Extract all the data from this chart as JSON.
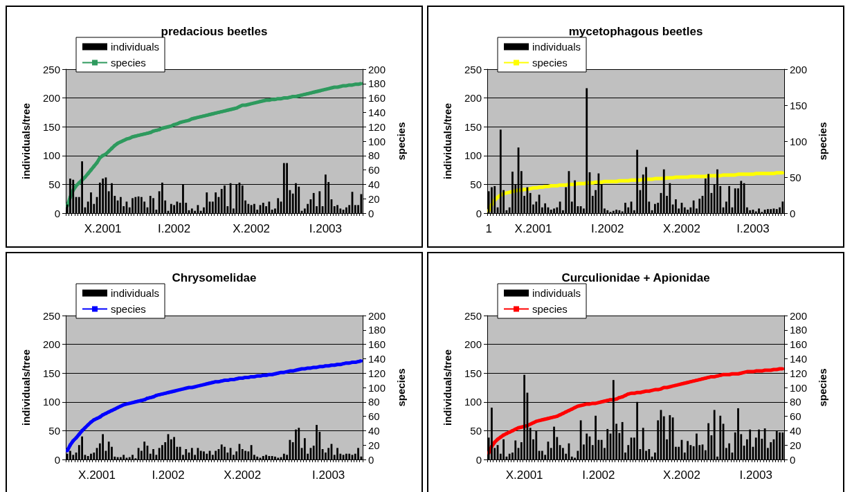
{
  "chart_data": [
    {
      "type": "bar",
      "title": "predacious beetles",
      "ylabel": "individuals/tree",
      "y2label": "species",
      "grid": "y",
      "legend": "top left",
      "marker": "square",
      "categories": [
        null,
        null,
        null,
        null,
        null,
        null,
        null,
        null,
        null,
        null,
        null,
        null,
        "X.2001",
        null,
        null,
        null,
        null,
        null,
        null,
        null,
        null,
        null,
        null,
        null,
        null,
        null,
        null,
        null,
        null,
        null,
        null,
        null,
        null,
        null,
        null,
        null,
        "I.2002",
        null,
        null,
        null,
        null,
        null,
        null,
        null,
        null,
        null,
        null,
        null,
        null,
        null,
        null,
        null,
        null,
        null,
        null,
        null,
        null,
        null,
        null,
        null,
        null,
        null,
        "X.2002",
        null,
        null,
        null,
        null,
        null,
        null,
        null,
        null,
        null,
        null,
        null,
        null,
        null,
        null,
        null,
        null,
        null,
        null,
        null,
        null,
        null,
        null,
        null,
        null,
        "I.2003",
        null,
        null,
        null,
        null,
        null,
        null,
        null,
        null,
        null,
        null,
        null,
        null
      ],
      "ylim": [
        0,
        250
      ],
      "yticks": [
        0,
        50,
        100,
        150,
        200,
        250
      ],
      "y2lim": [
        0,
        200
      ],
      "y2ticks": [
        0,
        20,
        40,
        60,
        80,
        100,
        120,
        140,
        160,
        180,
        200
      ],
      "series": [
        {
          "name": "individuals",
          "color": "#000000",
          "values": [
            15,
            60,
            58,
            28,
            28,
            90,
            10,
            20,
            36,
            16,
            28,
            53,
            60,
            62,
            38,
            52,
            30,
            22,
            28,
            12,
            20,
            10,
            26,
            28,
            29,
            28,
            20,
            10,
            30,
            26,
            6,
            38,
            53,
            22,
            4,
            16,
            14,
            20,
            18,
            50,
            18,
            5,
            8,
            4,
            14,
            4,
            10,
            36,
            20,
            20,
            36,
            28,
            42,
            48,
            12,
            52,
            8,
            50,
            53,
            48,
            22,
            16,
            14,
            16,
            6,
            14,
            18,
            12,
            20,
            6,
            8,
            26,
            20,
            87,
            87,
            40,
            34,
            52,
            46,
            4,
            8,
            16,
            24,
            35,
            12,
            38,
            12,
            67,
            54,
            24,
            12,
            14,
            8,
            6,
            10,
            14,
            37,
            14,
            14,
            33
          ]
        },
        {
          "name": "species",
          "type": "line",
          "axis": "y2",
          "color": "#2e9a5e",
          "values": [
            10,
            22,
            32,
            38,
            42,
            46,
            50,
            55,
            60,
            65,
            70,
            77,
            80,
            82,
            86,
            90,
            94,
            97,
            99,
            101,
            103,
            104,
            106,
            107,
            108,
            109,
            110,
            111,
            112,
            114,
            115,
            116,
            118,
            119,
            120,
            121,
            123,
            124,
            126,
            127,
            128,
            129,
            131,
            132,
            133,
            134,
            135,
            136,
            137,
            138,
            139,
            140,
            141,
            142,
            143,
            144,
            145,
            146,
            148,
            150,
            150,
            151,
            152,
            153,
            154,
            155,
            156,
            157,
            157,
            158,
            158,
            159,
            159,
            160,
            160,
            161,
            162,
            162,
            163,
            164,
            165,
            166,
            167,
            168,
            169,
            170,
            171,
            172,
            173,
            174,
            175,
            175,
            176,
            177,
            177,
            178,
            178,
            179,
            179,
            180
          ]
        }
      ]
    },
    {
      "type": "bar",
      "title": "mycetophagous beetles",
      "ylabel": "individuals/tree",
      "y2label": "species",
      "grid": "y",
      "legend": "top left",
      "marker": "square",
      "categories": [
        "1",
        null,
        null,
        null,
        null,
        null,
        null,
        null,
        null,
        null,
        null,
        null,
        null,
        null,
        null,
        "X.2001",
        null,
        null,
        null,
        null,
        null,
        null,
        null,
        null,
        null,
        null,
        null,
        null,
        null,
        null,
        null,
        null,
        null,
        null,
        null,
        null,
        null,
        null,
        null,
        null,
        "I.2002",
        null,
        null,
        null,
        null,
        null,
        null,
        null,
        null,
        null,
        null,
        null,
        null,
        null,
        null,
        null,
        null,
        null,
        null,
        null,
        null,
        null,
        null,
        null,
        null,
        "X.2002",
        null,
        null,
        null,
        null,
        null,
        null,
        null,
        null,
        null,
        null,
        null,
        null,
        null,
        null,
        null,
        null,
        null,
        null,
        null,
        null,
        null,
        null,
        null,
        "I.2003",
        null,
        null,
        null,
        null,
        null,
        null,
        null,
        null,
        null,
        null
      ],
      "ylim": [
        0,
        250
      ],
      "yticks": [
        0,
        50,
        100,
        150,
        200,
        250
      ],
      "y2lim": [
        0,
        200
      ],
      "y2ticks": [
        0,
        50,
        100,
        150,
        200
      ],
      "series": [
        {
          "name": "individuals",
          "color": "#000000",
          "values": [
            38,
            45,
            47,
            10,
            145,
            40,
            5,
            10,
            72,
            50,
            114,
            73,
            30,
            45,
            35,
            15,
            20,
            32,
            10,
            17,
            10,
            6,
            8,
            10,
            20,
            5,
            45,
            73,
            20,
            57,
            12,
            12,
            8,
            217,
            71,
            30,
            40,
            69,
            50,
            8,
            5,
            2,
            4,
            6,
            5,
            3,
            18,
            10,
            20,
            5,
            110,
            40,
            67,
            80,
            20,
            5,
            16,
            18,
            35,
            76,
            30,
            52,
            15,
            24,
            8,
            18,
            10,
            6,
            10,
            22,
            8,
            25,
            30,
            60,
            68,
            35,
            50,
            76,
            47,
            10,
            20,
            47,
            10,
            43,
            43,
            56,
            52,
            10,
            5,
            6,
            3,
            8,
            2,
            6,
            7,
            7,
            8,
            7,
            10,
            20
          ]
        },
        {
          "name": "species",
          "type": "line",
          "axis": "y2",
          "color": "#ffff00",
          "values": [
            3,
            12,
            18,
            22,
            25,
            27,
            28,
            29,
            30,
            31,
            32,
            32,
            33,
            33,
            34,
            35,
            35,
            36,
            36,
            37,
            37,
            38,
            38,
            38,
            39,
            39,
            39,
            40,
            40,
            40,
            41,
            41,
            41,
            42,
            42,
            42,
            43,
            43,
            43,
            44,
            44,
            44,
            44,
            44,
            45,
            45,
            45,
            45,
            46,
            46,
            46,
            46,
            47,
            47,
            47,
            47,
            48,
            48,
            48,
            48,
            49,
            49,
            49,
            50,
            50,
            50,
            50,
            50,
            51,
            51,
            51,
            51,
            51,
            51,
            52,
            52,
            52,
            52,
            52,
            53,
            53,
            53,
            53,
            53,
            54,
            54,
            54,
            54,
            54,
            54,
            55,
            55,
            55,
            55,
            55,
            55,
            55,
            56,
            56,
            56
          ]
        }
      ]
    },
    {
      "type": "bar",
      "title": "Chrysomelidae",
      "ylabel": "individuals/tree",
      "y2label": "species",
      "grid": "y",
      "legend": "top left",
      "marker": "square",
      "categories": [
        null,
        null,
        null,
        null,
        null,
        null,
        null,
        null,
        null,
        null,
        "X.2001",
        null,
        null,
        null,
        null,
        null,
        null,
        null,
        null,
        null,
        null,
        null,
        null,
        null,
        null,
        null,
        null,
        null,
        null,
        null,
        null,
        null,
        null,
        null,
        "I.2002",
        null,
        null,
        null,
        null,
        null,
        null,
        null,
        null,
        null,
        null,
        null,
        null,
        null,
        null,
        null,
        null,
        null,
        null,
        null,
        null,
        null,
        null,
        null,
        null,
        "X.2002",
        null,
        null,
        null,
        null,
        null,
        null,
        null,
        null,
        null,
        null,
        null,
        null,
        null,
        null,
        null,
        null,
        null,
        null,
        null,
        null,
        null,
        null,
        null,
        null,
        null,
        null,
        null,
        null,
        "I.2003",
        null,
        null,
        null,
        null,
        null,
        null,
        null,
        null,
        null,
        null,
        null
      ],
      "ylim": [
        0,
        250
      ],
      "yticks": [
        0,
        50,
        100,
        150,
        200,
        250
      ],
      "y2lim": [
        0,
        200
      ],
      "y2ticks": [
        0,
        20,
        40,
        60,
        80,
        100,
        120,
        140,
        160,
        180,
        200
      ],
      "series": [
        {
          "name": "individuals",
          "color": "#000000",
          "values": [
            10,
            15,
            8,
            12,
            25,
            40,
            8,
            6,
            10,
            12,
            20,
            28,
            44,
            15,
            31,
            22,
            5,
            4,
            4,
            8,
            3,
            4,
            8,
            2,
            20,
            15,
            31,
            24,
            10,
            18,
            8,
            20,
            25,
            30,
            44,
            35,
            39,
            22,
            22,
            8,
            18,
            12,
            20,
            8,
            20,
            15,
            14,
            10,
            15,
            8,
            15,
            18,
            26,
            22,
            12,
            20,
            8,
            14,
            27,
            18,
            15,
            14,
            25,
            8,
            5,
            3,
            6,
            8,
            6,
            6,
            5,
            3,
            4,
            10,
            8,
            34,
            30,
            52,
            55,
            20,
            37,
            10,
            20,
            24,
            60,
            48,
            18,
            12,
            20,
            27,
            8,
            20,
            10,
            8,
            10,
            10,
            8,
            10,
            20,
            5
          ]
        },
        {
          "name": "species",
          "type": "line",
          "axis": "y2",
          "color": "#0000ff",
          "values": [
            12,
            20,
            26,
            30,
            35,
            40,
            44,
            48,
            52,
            55,
            57,
            59,
            62,
            64,
            66,
            68,
            70,
            72,
            74,
            76,
            77,
            78,
            79,
            80,
            81,
            82,
            83,
            85,
            86,
            87,
            89,
            90,
            91,
            92,
            93,
            94,
            95,
            96,
            97,
            98,
            99,
            100,
            100,
            101,
            102,
            103,
            104,
            105,
            106,
            107,
            108,
            108,
            109,
            110,
            110,
            111,
            111,
            112,
            113,
            113,
            114,
            114,
            115,
            115,
            116,
            116,
            117,
            117,
            118,
            118,
            119,
            120,
            121,
            121,
            122,
            123,
            123,
            124,
            125,
            126,
            126,
            127,
            127,
            128,
            128,
            129,
            129,
            130,
            130,
            131,
            131,
            132,
            132,
            133,
            134,
            134,
            135,
            135,
            136,
            137
          ]
        }
      ]
    },
    {
      "type": "bar",
      "title": "Curculionidae + Apionidae",
      "ylabel": "individuals/tree",
      "y2label": "species",
      "grid": "y",
      "legend": "top left",
      "marker": "square",
      "categories": [
        null,
        null,
        null,
        null,
        null,
        null,
        null,
        null,
        null,
        null,
        null,
        null,
        "X.2001",
        null,
        null,
        null,
        null,
        null,
        null,
        null,
        null,
        null,
        null,
        null,
        null,
        null,
        null,
        null,
        null,
        null,
        null,
        null,
        null,
        null,
        null,
        null,
        null,
        "I.2002",
        null,
        null,
        null,
        null,
        null,
        null,
        null,
        null,
        null,
        null,
        null,
        null,
        null,
        null,
        null,
        null,
        null,
        null,
        null,
        null,
        null,
        null,
        null,
        null,
        null,
        null,
        null,
        "X.2002",
        null,
        null,
        null,
        null,
        null,
        null,
        null,
        null,
        null,
        null,
        null,
        null,
        null,
        null,
        null,
        null,
        null,
        null,
        null,
        null,
        null,
        null,
        null,
        null,
        "I.2003",
        null,
        null,
        null,
        null,
        null,
        null,
        null,
        null,
        null
      ],
      "ylim": [
        0,
        250
      ],
      "yticks": [
        0,
        50,
        100,
        150,
        200,
        250
      ],
      "y2lim": [
        0,
        200
      ],
      "y2ticks": [
        0,
        20,
        40,
        60,
        80,
        100,
        120,
        140,
        160,
        180,
        200
      ],
      "series": [
        {
          "name": "individuals",
          "color": "#000000",
          "values": [
            38,
            90,
            20,
            25,
            10,
            35,
            5,
            10,
            12,
            33,
            20,
            30,
            147,
            116,
            55,
            35,
            50,
            15,
            15,
            8,
            31,
            20,
            57,
            39,
            25,
            20,
            10,
            28,
            5,
            3,
            15,
            68,
            26,
            45,
            40,
            25,
            76,
            34,
            34,
            20,
            53,
            45,
            138,
            62,
            46,
            65,
            12,
            25,
            38,
            38,
            100,
            18,
            55,
            15,
            18,
            5,
            12,
            68,
            86,
            75,
            35,
            77,
            73,
            22,
            22,
            34,
            12,
            32,
            25,
            23,
            45,
            25,
            26,
            16,
            63,
            42,
            86,
            5,
            76,
            62,
            20,
            28,
            12,
            47,
            89,
            44,
            24,
            35,
            52,
            22,
            38,
            52,
            36,
            54,
            20,
            30,
            35,
            50,
            47,
            47
          ]
        },
        {
          "name": "species",
          "type": "line",
          "axis": "y2",
          "color": "#ff0000",
          "values": [
            9,
            18,
            24,
            28,
            31,
            34,
            36,
            38,
            40,
            42,
            44,
            45,
            46,
            47,
            49,
            51,
            53,
            54,
            55,
            56,
            57,
            58,
            59,
            60,
            62,
            64,
            66,
            68,
            70,
            72,
            74,
            75,
            76,
            77,
            77,
            78,
            78,
            79,
            80,
            81,
            82,
            83,
            83,
            84,
            86,
            87,
            89,
            91,
            92,
            92,
            93,
            93,
            94,
            95,
            95,
            96,
            97,
            97,
            98,
            100,
            100,
            101,
            102,
            103,
            104,
            105,
            106,
            107,
            108,
            109,
            110,
            111,
            112,
            113,
            114,
            115,
            115,
            116,
            117,
            118,
            118,
            118,
            119,
            119,
            119,
            120,
            121,
            122,
            122,
            122,
            123,
            123,
            123,
            124,
            124,
            124,
            125,
            125,
            126,
            126
          ]
        }
      ]
    }
  ]
}
